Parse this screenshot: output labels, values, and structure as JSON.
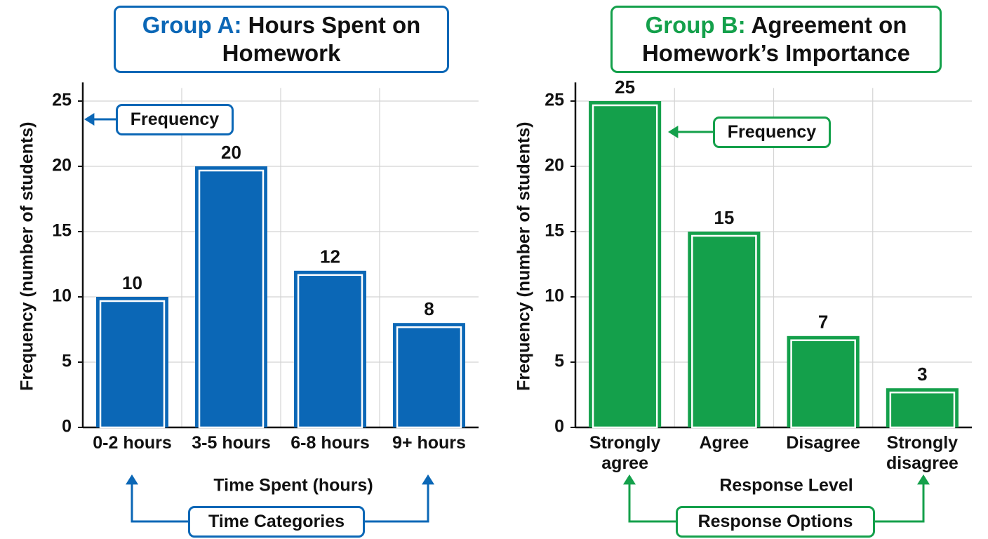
{
  "chart_data": [
    {
      "type": "bar",
      "title_label": "Group A:",
      "title": "Hours Spent on Homework",
      "x_label": "Time Spent (hours)",
      "y_label": "Frequency (number of students)",
      "categories": [
        "0-2 hours",
        "3-5 hours",
        "6-8 hours",
        "9+ hours"
      ],
      "values": [
        10,
        20,
        12,
        8
      ],
      "color": "#0b67b6",
      "ylim": [
        0,
        26
      ],
      "yticks": [
        0,
        5,
        10,
        15,
        20,
        25
      ],
      "grid": true,
      "annotations": [
        "Frequency",
        "Time Categories"
      ]
    },
    {
      "type": "bar",
      "title_label": "Group B:",
      "title": "Agreement on Homework’s Importance",
      "x_label": "Response Level",
      "y_label": "Frequency (number of students)",
      "categories": [
        "Strongly agree",
        "Agree",
        "Disagree",
        "Strongly disagree"
      ],
      "values": [
        25,
        15,
        7,
        3
      ],
      "color": "#14a04b",
      "ylim": [
        0,
        26
      ],
      "yticks": [
        0,
        5,
        10,
        15,
        20,
        25
      ],
      "grid": true,
      "annotations": [
        "Frequency",
        "Response Options"
      ]
    }
  ]
}
